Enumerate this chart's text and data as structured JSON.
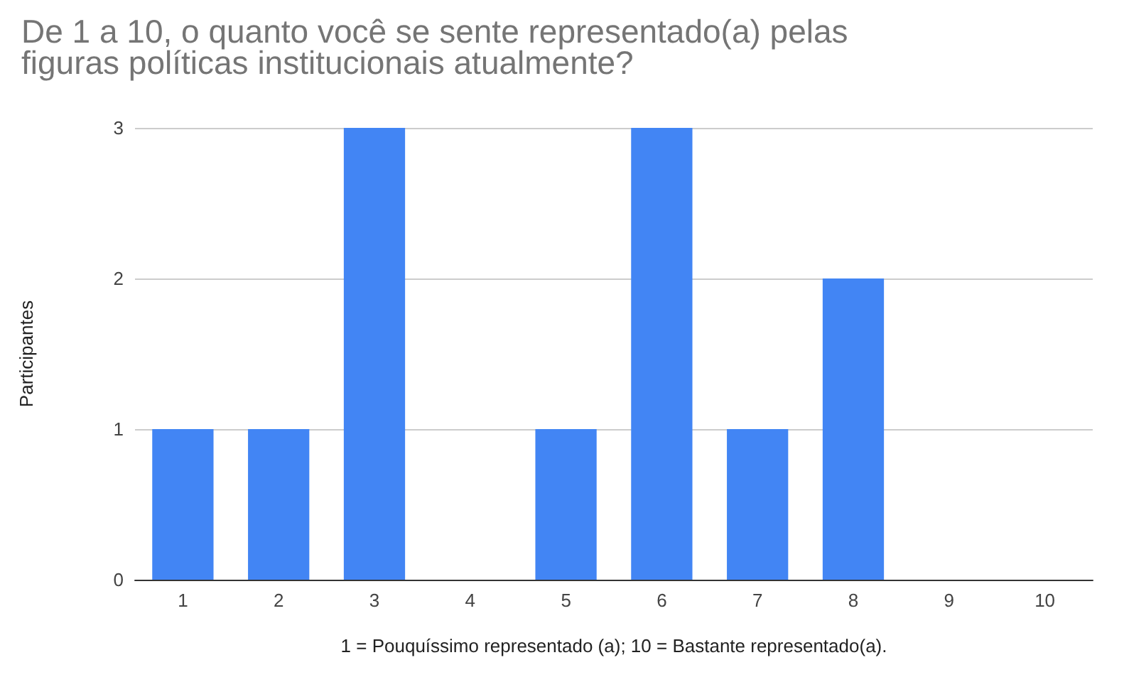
{
  "chart_data": {
    "type": "bar",
    "title": "De 1 a 10, o quanto você se sente representado(a) pelas\nfiguras políticas institucionais atualmente?",
    "xlabel": "1 = Pouquíssimo representado (a); 10 = Bastante representado(a).",
    "ylabel": "Participantes",
    "categories": [
      "1",
      "2",
      "3",
      "4",
      "5",
      "6",
      "7",
      "8",
      "9",
      "10"
    ],
    "values": [
      1,
      1,
      3,
      0,
      1,
      3,
      1,
      2,
      0,
      0
    ],
    "color": "#4285f4",
    "ylim": [
      0,
      3
    ],
    "yticks": [
      0,
      1,
      2,
      3
    ],
    "grid": "y"
  }
}
